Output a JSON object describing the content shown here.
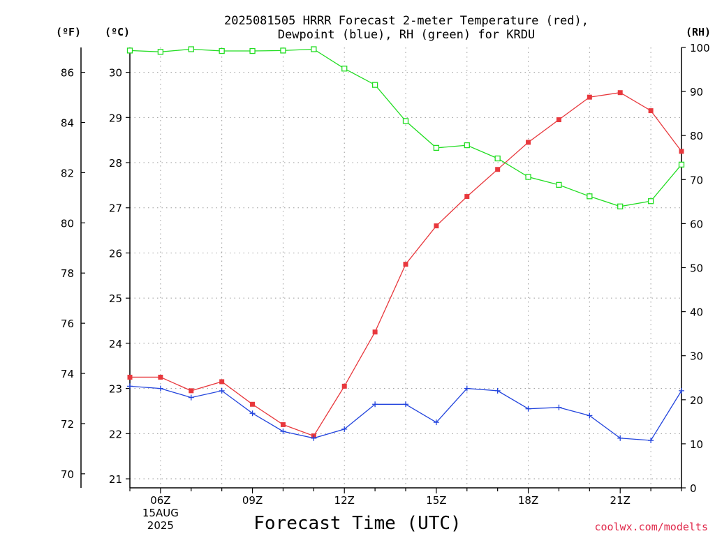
{
  "chart_data": {
    "type": "line",
    "title": [
      "2025081505 HRRR Forecast 2-meter Temperature (red),",
      "Dewpoint (blue), RH (green) for KRDU"
    ],
    "xlabel": "Forecast Time (UTC)",
    "credit": "coolwx.com/modelts",
    "units": {
      "fahrenheit": "(ºF)",
      "celsius": "(ºC)",
      "rh": "(RH)"
    },
    "x": [
      "05Z",
      "06Z",
      "07Z",
      "08Z",
      "09Z",
      "10Z",
      "11Z",
      "12Z",
      "13Z",
      "14Z",
      "15Z",
      "16Z",
      "17Z",
      "18Z",
      "19Z",
      "20Z",
      "21Z",
      "22Z",
      "23Z"
    ],
    "x_tick_labels": [
      {
        "at": "06Z",
        "lines": [
          "06Z",
          "15AUG",
          "2025"
        ]
      },
      {
        "at": "09Z",
        "lines": [
          "09Z"
        ]
      },
      {
        "at": "12Z",
        "lines": [
          "12Z"
        ]
      },
      {
        "at": "15Z",
        "lines": [
          "15Z"
        ]
      },
      {
        "at": "18Z",
        "lines": [
          "18Z"
        ]
      },
      {
        "at": "21Z",
        "lines": [
          "21Z"
        ]
      }
    ],
    "y_celsius": {
      "ticks": [
        21,
        22,
        23,
        24,
        25,
        26,
        27,
        28,
        29,
        30
      ],
      "range": [
        20.8,
        30.55
      ]
    },
    "y_fahrenheit": {
      "ticks": [
        70,
        72,
        74,
        76,
        78,
        80,
        82,
        84,
        86
      ]
    },
    "y_rh": {
      "ticks": [
        0,
        10,
        20,
        30,
        40,
        50,
        60,
        70,
        80,
        90,
        100
      ],
      "range": [
        0,
        100
      ]
    },
    "grid": true,
    "series": [
      {
        "name": "Temperature",
        "color": "#e8383d",
        "marker": "filled-square",
        "axis": "celsius",
        "values": [
          23.25,
          23.25,
          22.95,
          23.15,
          22.65,
          22.2,
          21.95,
          23.05,
          24.25,
          25.75,
          26.6,
          27.25,
          27.85,
          28.45,
          28.95,
          29.45,
          29.55,
          29.15,
          28.25
        ]
      },
      {
        "name": "Dewpoint",
        "color": "#2244dd",
        "marker": "plus",
        "axis": "celsius",
        "values": [
          23.05,
          23.0,
          22.8,
          22.95,
          22.45,
          22.05,
          21.9,
          22.1,
          22.65,
          22.65,
          22.25,
          23.0,
          22.95,
          22.55,
          22.58,
          22.4,
          21.9,
          21.85,
          22.95
        ]
      },
      {
        "name": "RH",
        "color": "#22dd22",
        "marker": "open-square",
        "axis": "rh",
        "values": [
          99.3,
          99.0,
          99.6,
          99.2,
          99.2,
          99.3,
          99.6,
          95.2,
          91.5,
          83.3,
          77.2,
          77.8,
          74.8,
          70.6,
          68.8,
          66.2,
          63.9,
          65.1,
          73.4
        ]
      }
    ]
  }
}
